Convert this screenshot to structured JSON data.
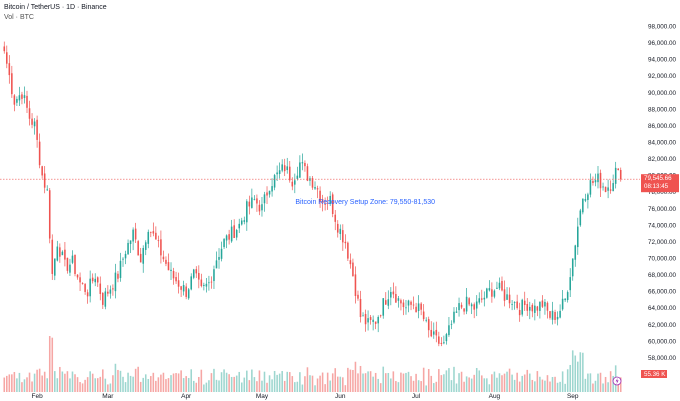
{
  "header": {
    "title": "Bitcoin / TetherUS · 1D · Binance",
    "volume_label": "Vol · BTC"
  },
  "colors": {
    "up": "#26a69a",
    "down": "#ef5350",
    "vol_up": "#9dd6cf",
    "vol_down": "#f6a6a4",
    "annotation": "#2962ff",
    "price_line": "#ef5350"
  },
  "chart_data": {
    "type": "candlestick",
    "title": "Bitcoin / TetherUS · 1D · Binance",
    "ylim": [
      57000,
      99000
    ],
    "y_ticks": [
      "98,000.00",
      "96,000.00",
      "94,000.00",
      "92,000.00",
      "90,000.00",
      "88,000.00",
      "86,000.00",
      "84,000.00",
      "82,000.00",
      "80,000.00",
      "78,000.00",
      "76,000.00",
      "74,000.00",
      "72,000.00",
      "70,000.00",
      "68,000.00",
      "66,000.00",
      "64,000.00",
      "62,000.00",
      "60,000.00",
      "58,000.00"
    ],
    "x_ticks": [
      "Feb",
      "Mar",
      "Apr",
      "May",
      "Jun",
      "Jul",
      "Aug",
      "Sep"
    ],
    "grid": false,
    "annotation": {
      "text": "Bitcoin Recovery Setup Zone: 79,550-81,530",
      "date_index": 116,
      "price": 76800
    },
    "last_price": {
      "value": 79545.66,
      "label": "79,545.66",
      "countdown": "08:13:45"
    },
    "volume_last_label": "55.36 K",
    "anchors": [
      [
        0,
        95000
      ],
      [
        2,
        92000
      ],
      [
        4,
        89000
      ],
      [
        7,
        90000
      ],
      [
        10,
        87000
      ],
      [
        12,
        86000
      ],
      [
        15,
        80000
      ],
      [
        17,
        78000
      ],
      [
        19,
        68000
      ],
      [
        21,
        72000
      ],
      [
        24,
        69000
      ],
      [
        27,
        69500
      ],
      [
        30,
        67000
      ],
      [
        33,
        66000
      ],
      [
        36,
        68000
      ],
      [
        39,
        65000
      ],
      [
        42,
        66500
      ],
      [
        45,
        68000
      ],
      [
        48,
        71000
      ],
      [
        51,
        73000
      ],
      [
        54,
        70000
      ],
      [
        57,
        74000
      ],
      [
        60,
        72000
      ],
      [
        63,
        70000
      ],
      [
        66,
        68000
      ],
      [
        69,
        67000
      ],
      [
        72,
        66000
      ],
      [
        75,
        68000
      ],
      [
        78,
        66000
      ],
      [
        81,
        67000
      ],
      [
        84,
        70000
      ],
      [
        87,
        72000
      ],
      [
        90,
        73000
      ],
      [
        93,
        74000
      ],
      [
        96,
        76000
      ],
      [
        99,
        77000
      ],
      [
        102,
        76000
      ],
      [
        105,
        79000
      ],
      [
        108,
        80000
      ],
      [
        111,
        81000
      ],
      [
        114,
        79500
      ],
      [
        117,
        81500
      ],
      [
        120,
        80000
      ],
      [
        123,
        79000
      ],
      [
        126,
        77000
      ],
      [
        129,
        77000
      ],
      [
        132,
        74000
      ],
      [
        135,
        72000
      ],
      [
        138,
        68000
      ],
      [
        141,
        63000
      ],
      [
        144,
        62000
      ],
      [
        147,
        62500
      ],
      [
        150,
        64500
      ],
      [
        153,
        66500
      ],
      [
        156,
        65000
      ],
      [
        159,
        64000
      ],
      [
        162,
        64500
      ],
      [
        165,
        63500
      ],
      [
        168,
        61000
      ],
      [
        171,
        60000
      ],
      [
        174,
        59500
      ],
      [
        177,
        62000
      ],
      [
        180,
        64000
      ],
      [
        183,
        64500
      ],
      [
        186,
        64000
      ],
      [
        189,
        65000
      ],
      [
        192,
        66000
      ],
      [
        195,
        66500
      ],
      [
        198,
        65500
      ],
      [
        201,
        65000
      ],
      [
        204,
        64000
      ],
      [
        207,
        64500
      ],
      [
        210,
        64000
      ],
      [
        213,
        64500
      ],
      [
        216,
        63000
      ],
      [
        219,
        63200
      ],
      [
        222,
        65000
      ],
      [
        225,
        70000
      ],
      [
        227,
        74000
      ],
      [
        229,
        77500
      ],
      [
        232,
        79000
      ],
      [
        235,
        79500
      ],
      [
        238,
        78500
      ],
      [
        240,
        79000
      ],
      [
        242,
        80500
      ],
      [
        244,
        79545.66
      ]
    ],
    "candle_count": 245,
    "month_start_index": {
      "Feb": 13,
      "Mar": 41,
      "Apr": 72,
      "May": 102,
      "Jun": 133,
      "Jul": 163,
      "Aug": 194,
      "Sep": 225
    }
  }
}
